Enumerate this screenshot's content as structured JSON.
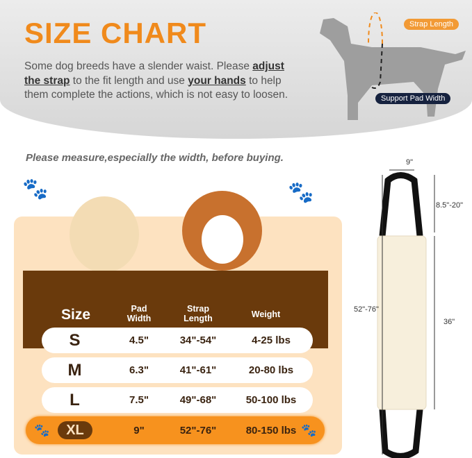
{
  "title": "SIZE CHART",
  "intro": {
    "p1": "Some dog breeds have a slender waist. Please ",
    "b1": "adjust the strap",
    "p2": " to the fit length and use ",
    "b2": "your hands",
    "p3": " to help them complete the actions, which is not easy to loosen."
  },
  "diagram": {
    "strap_label": "Strap Length",
    "pad_label": "Support Pad Width"
  },
  "tip": "Please measure,especially the width, before buying.",
  "table": {
    "headers": {
      "size": "Size",
      "pad": "Pad Width",
      "strap": "Strap Length",
      "weight": "Weight"
    },
    "rows": [
      {
        "size": "S",
        "pad": "4.5\"",
        "strap": "34\"-54\"",
        "weight": "4-25 lbs"
      },
      {
        "size": "M",
        "pad": "6.3\"",
        "strap": "41\"-61\"",
        "weight": "20-80 lbs"
      },
      {
        "size": "L",
        "pad": "7.5\"",
        "strap": "49\"-68\"",
        "weight": "50-100 lbs"
      },
      {
        "size": "XL",
        "pad": "9\"",
        "strap": "52\"-76\"",
        "weight": "80-150 lbs",
        "highlighted": true
      }
    ]
  },
  "product_dims": {
    "width": "9\"",
    "strap": "8.5\"-20\"",
    "total": "52\"-76\"",
    "pad": "36\""
  },
  "colors": {
    "accent": "#f7921e",
    "brown": "#6a3a0c",
    "panel": "#fde2c0"
  }
}
